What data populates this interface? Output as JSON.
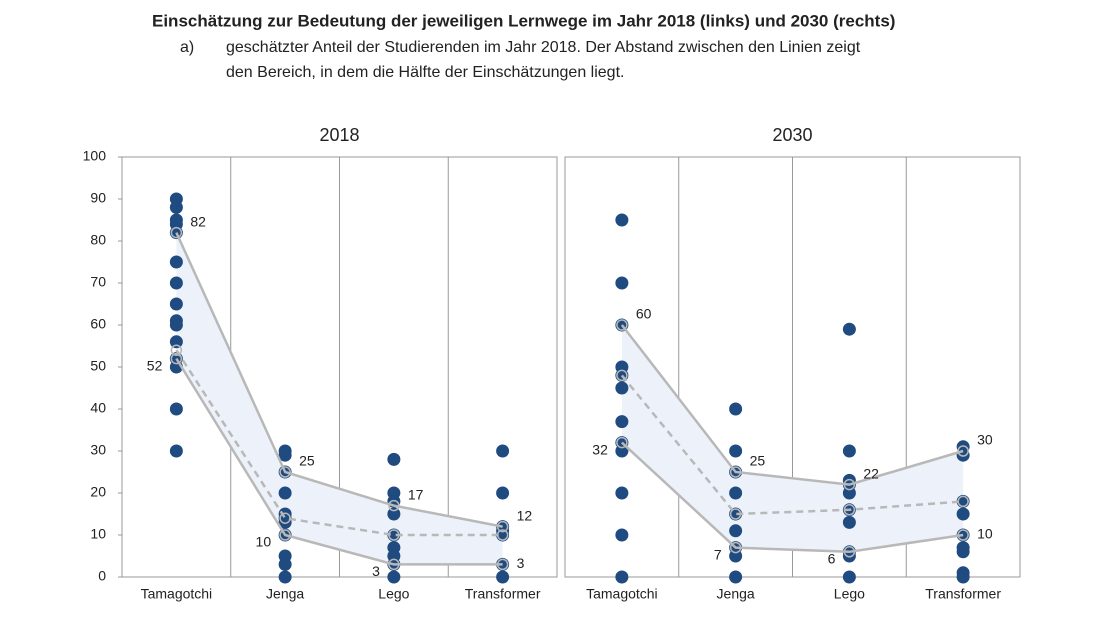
{
  "title": "Einschätzung zur Bedeutung der jeweiligen Lernwege im Jahr 2018 (links) und 2030 (rechts)",
  "subtitle_marker": "a)",
  "subtitle": [
    "geschätzter Anteil der Studierenden im Jahr 2018. Der Abstand zwischen den Linien zeigt",
    "den Bereich, in dem die Hälfte der Einschätzungen liegt."
  ],
  "chart_data": [
    {
      "type": "dotrange",
      "title": "2018",
      "categories": [
        "Tamagotchi",
        "Jenga",
        "Lego",
        "Transformer"
      ],
      "dots": [
        [
          90,
          88,
          85,
          84,
          82,
          75,
          70,
          65,
          61,
          60,
          56,
          52,
          50,
          40,
          30
        ],
        [
          30,
          29,
          25,
          20,
          15,
          14,
          13,
          10,
          5,
          3,
          0
        ],
        [
          28,
          20,
          18,
          15,
          10,
          7,
          5,
          3,
          0
        ],
        [
          30,
          20,
          12,
          11,
          10,
          3,
          0
        ]
      ],
      "upper": [
        82,
        25,
        17,
        12
      ],
      "median": [
        54,
        14,
        10,
        10
      ],
      "lower": [
        52,
        10,
        3,
        3
      ],
      "ylim": [
        0,
        100
      ],
      "yticks": [
        0,
        10,
        20,
        30,
        40,
        50,
        60,
        70,
        80,
        90,
        100
      ],
      "color": "#1f4b80",
      "line_color": "#b8b8b8",
      "band_color": "#edf2fa"
    },
    {
      "type": "dotrange",
      "title": "2030",
      "categories": [
        "Tamagotchi",
        "Jenga",
        "Lego",
        "Transformer"
      ],
      "dots": [
        [
          85,
          70,
          60,
          50,
          48,
          45,
          37,
          32,
          30,
          20,
          10,
          0
        ],
        [
          40,
          30,
          25,
          20,
          15,
          11,
          7,
          5,
          0
        ],
        [
          59,
          30,
          23,
          22,
          20,
          16,
          13,
          6,
          5,
          0
        ],
        [
          31,
          29,
          18,
          15,
          10,
          7,
          6,
          1,
          0
        ]
      ],
      "upper": [
        60,
        25,
        22,
        30
      ],
      "median": [
        48,
        15,
        16,
        18
      ],
      "lower": [
        32,
        7,
        6,
        10
      ],
      "ylim": [
        0,
        100
      ],
      "color": "#1f4b80",
      "line_color": "#b8b8b8",
      "band_color": "#edf2fa"
    }
  ]
}
